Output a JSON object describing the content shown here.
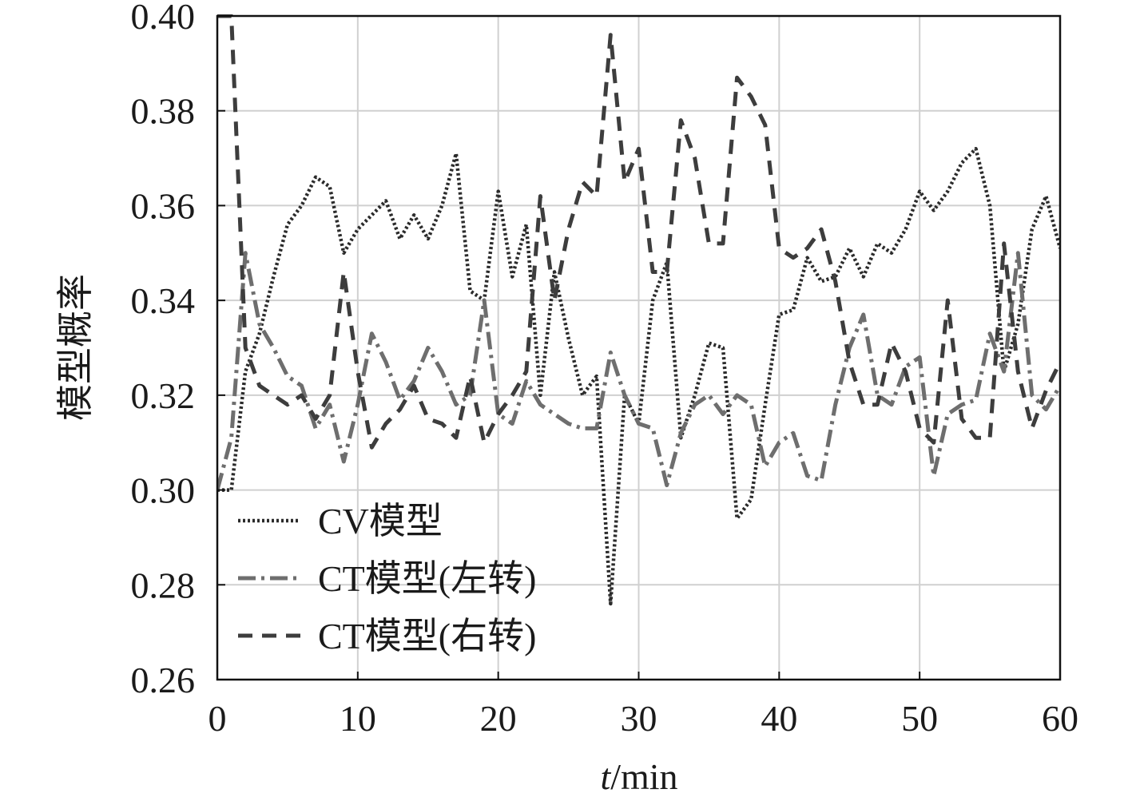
{
  "chart_data": {
    "type": "line",
    "xlabel_italic": "t",
    "xlabel_rest": "/min",
    "ylabel": "模型概率",
    "xlim": [
      0,
      60
    ],
    "ylim": [
      0.26,
      0.4
    ],
    "grid": true,
    "legend_position": "bottom-left",
    "x_ticks": [
      "0",
      "10",
      "20",
      "30",
      "40",
      "50",
      "60"
    ],
    "y_ticks": [
      "0.26",
      "0.28",
      "0.30",
      "0.32",
      "0.34",
      "0.36",
      "0.38",
      "0.40"
    ],
    "x": [
      0,
      1,
      2,
      3,
      4,
      5,
      6,
      7,
      8,
      9,
      10,
      11,
      12,
      13,
      14,
      15,
      16,
      17,
      18,
      19,
      20,
      21,
      22,
      23,
      24,
      25,
      26,
      27,
      28,
      29,
      30,
      31,
      32,
      33,
      34,
      35,
      36,
      37,
      38,
      39,
      40,
      41,
      42,
      43,
      44,
      45,
      46,
      47,
      48,
      49,
      50,
      51,
      52,
      53,
      54,
      55,
      56,
      57,
      58,
      59,
      60
    ],
    "series": [
      {
        "name": "CV模型",
        "style": "dotted",
        "color": "#2b2b2b",
        "values": [
          0.3,
          0.3,
          0.325,
          0.333,
          0.345,
          0.356,
          0.36,
          0.366,
          0.364,
          0.35,
          0.355,
          0.358,
          0.361,
          0.353,
          0.358,
          0.353,
          0.36,
          0.371,
          0.342,
          0.34,
          0.363,
          0.345,
          0.356,
          0.32,
          0.346,
          0.332,
          0.32,
          0.324,
          0.276,
          0.32,
          0.314,
          0.34,
          0.348,
          0.311,
          0.32,
          0.331,
          0.33,
          0.294,
          0.298,
          0.318,
          0.337,
          0.338,
          0.349,
          0.344,
          0.345,
          0.351,
          0.345,
          0.352,
          0.35,
          0.355,
          0.363,
          0.359,
          0.363,
          0.369,
          0.372,
          0.36,
          0.325,
          0.335,
          0.355,
          0.362,
          0.351
        ]
      },
      {
        "name": "CT模型(左转)",
        "style": "dashdot",
        "color": "#6e6e6e",
        "values": [
          0.3,
          0.311,
          0.35,
          0.335,
          0.33,
          0.324,
          0.322,
          0.313,
          0.318,
          0.306,
          0.318,
          0.333,
          0.327,
          0.319,
          0.323,
          0.33,
          0.325,
          0.318,
          0.32,
          0.34,
          0.316,
          0.314,
          0.323,
          0.318,
          0.316,
          0.314,
          0.313,
          0.313,
          0.329,
          0.32,
          0.314,
          0.313,
          0.301,
          0.312,
          0.318,
          0.32,
          0.316,
          0.32,
          0.318,
          0.305,
          0.31,
          0.312,
          0.303,
          0.302,
          0.318,
          0.33,
          0.337,
          0.32,
          0.318,
          0.326,
          0.328,
          0.303,
          0.316,
          0.318,
          0.319,
          0.333,
          0.325,
          0.35,
          0.32,
          0.317,
          0.322
        ]
      },
      {
        "name": "CT模型(右转)",
        "style": "dashed",
        "color": "#3d3d3d",
        "values": [
          0.4,
          0.4,
          0.33,
          0.322,
          0.32,
          0.318,
          0.32,
          0.315,
          0.32,
          0.346,
          0.325,
          0.309,
          0.314,
          0.317,
          0.322,
          0.315,
          0.314,
          0.311,
          0.324,
          0.31,
          0.316,
          0.32,
          0.325,
          0.362,
          0.34,
          0.355,
          0.365,
          0.362,
          0.396,
          0.365,
          0.372,
          0.346,
          0.346,
          0.378,
          0.37,
          0.352,
          0.352,
          0.387,
          0.383,
          0.377,
          0.351,
          0.349,
          0.351,
          0.355,
          0.344,
          0.327,
          0.318,
          0.318,
          0.331,
          0.325,
          0.313,
          0.31,
          0.34,
          0.315,
          0.311,
          0.311,
          0.352,
          0.325,
          0.313,
          0.321,
          0.327
        ]
      }
    ]
  }
}
